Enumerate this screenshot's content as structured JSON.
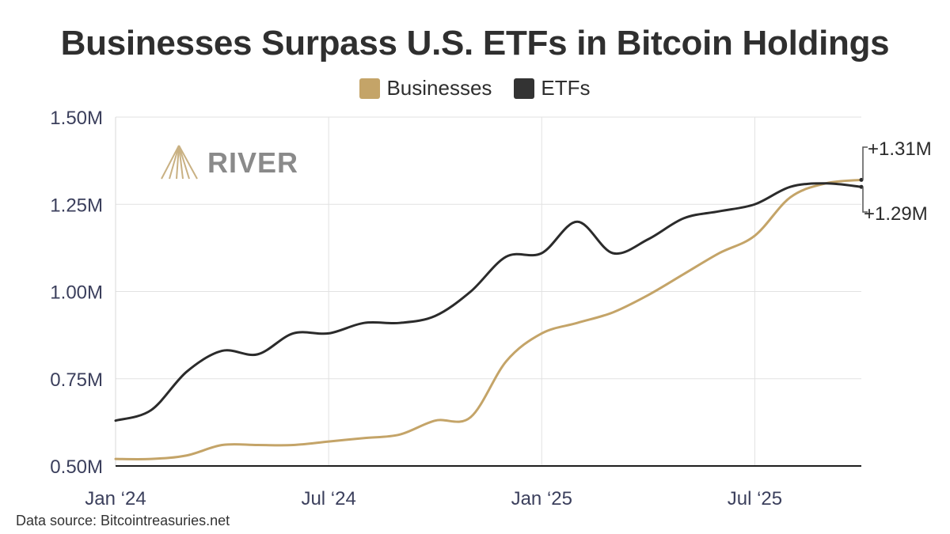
{
  "chart_data": {
    "type": "line",
    "title": "Businesses Surpass U.S. ETFs in Bitcoin Holdings",
    "xlabel": "",
    "ylabel": "",
    "x_tick_labels": [
      "Jan ‘24",
      "Jul ‘24",
      "Jan ‘25",
      "Jul ‘25"
    ],
    "y_tick_labels": [
      "0.50M",
      "0.75M",
      "1.00M",
      "1.25M",
      "1.50M"
    ],
    "y_ticks": [
      0.5,
      0.75,
      1.0,
      1.25,
      1.5
    ],
    "ylim": [
      0.5,
      1.5
    ],
    "xlim": [
      "2024-01",
      "2025-10"
    ],
    "grid": true,
    "legend_position": "top-center",
    "series": [
      {
        "name": "Businesses",
        "color": "#c4a468",
        "points": [
          [
            "2024-01",
            0.52
          ],
          [
            "2024-02",
            0.52
          ],
          [
            "2024-03",
            0.53
          ],
          [
            "2024-04",
            0.56
          ],
          [
            "2024-05",
            0.56
          ],
          [
            "2024-06",
            0.56
          ],
          [
            "2024-07",
            0.57
          ],
          [
            "2024-08",
            0.58
          ],
          [
            "2024-09",
            0.59
          ],
          [
            "2024-10",
            0.63
          ],
          [
            "2024-11",
            0.64
          ],
          [
            "2024-12",
            0.8
          ],
          [
            "2025-01",
            0.88
          ],
          [
            "2025-02",
            0.91
          ],
          [
            "2025-03",
            0.94
          ],
          [
            "2025-04",
            0.99
          ],
          [
            "2025-05",
            1.05
          ],
          [
            "2025-06",
            1.11
          ],
          [
            "2025-07",
            1.16
          ],
          [
            "2025-08",
            1.27
          ],
          [
            "2025-09",
            1.31
          ],
          [
            "2025-10",
            1.32
          ]
        ]
      },
      {
        "name": "ETFs",
        "color": "#2b2b2b",
        "points": [
          [
            "2024-01",
            0.63
          ],
          [
            "2024-02",
            0.66
          ],
          [
            "2024-03",
            0.77
          ],
          [
            "2024-04",
            0.83
          ],
          [
            "2024-05",
            0.82
          ],
          [
            "2024-06",
            0.88
          ],
          [
            "2024-07",
            0.88
          ],
          [
            "2024-08",
            0.91
          ],
          [
            "2024-09",
            0.91
          ],
          [
            "2024-10",
            0.93
          ],
          [
            "2024-11",
            1.0
          ],
          [
            "2024-12",
            1.1
          ],
          [
            "2025-01",
            1.11
          ],
          [
            "2025-02",
            1.2
          ],
          [
            "2025-03",
            1.11
          ],
          [
            "2025-04",
            1.15
          ],
          [
            "2025-05",
            1.21
          ],
          [
            "2025-06",
            1.23
          ],
          [
            "2025-07",
            1.25
          ],
          [
            "2025-08",
            1.3
          ],
          [
            "2025-09",
            1.31
          ],
          [
            "2025-10",
            1.3
          ]
        ]
      }
    ],
    "annotations": [
      {
        "text": "+1.31M",
        "series": "Businesses"
      },
      {
        "text": "+1.29M",
        "series": "ETFs"
      }
    ]
  },
  "legend": {
    "items": [
      {
        "label": "Businesses",
        "color": "#c4a468"
      },
      {
        "label": "ETFs",
        "color": "#333333"
      }
    ]
  },
  "logo": {
    "text": "RIVER",
    "color": "#c9b183"
  },
  "source": "Data source: Bitcointreasuries.net"
}
